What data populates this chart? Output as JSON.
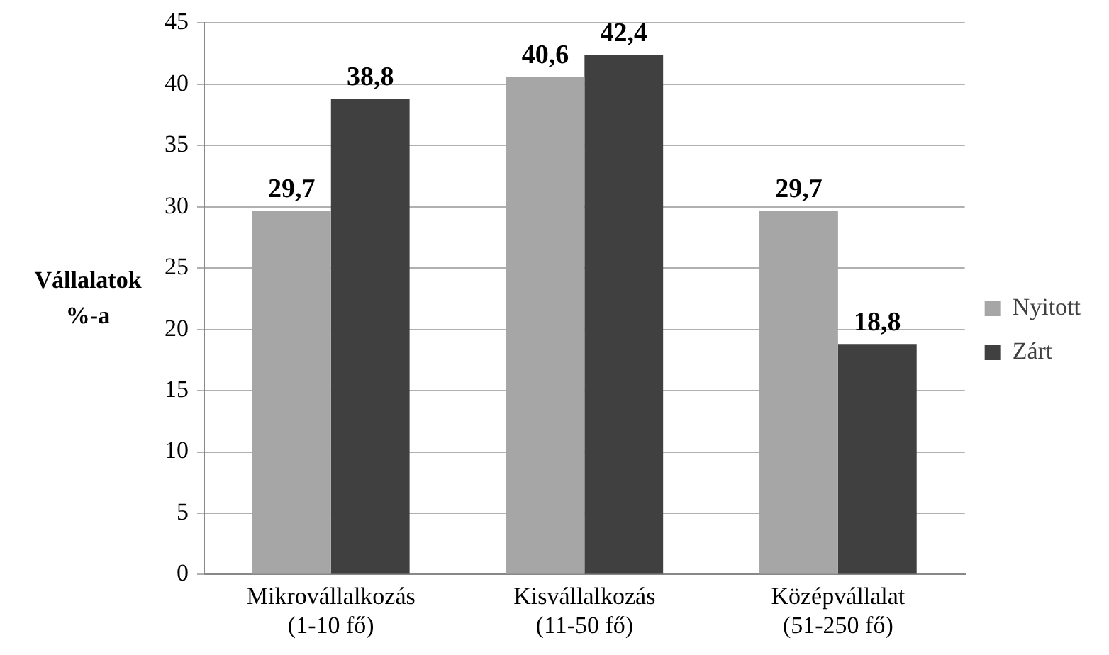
{
  "chart_data": {
    "type": "bar",
    "ylabel": "Vállalatok %-a",
    "categories": [
      "Mikrovállalkozás (1-10 fő)",
      "Kisvállalkozás (11-50 fő)",
      "Középvállalat (51-250 fő)"
    ],
    "series": [
      {
        "name": "Nyitott",
        "color": "#a6a6a6",
        "values": [
          29.7,
          40.6,
          29.7
        ],
        "value_labels": [
          "29,7",
          "40,6",
          "29,7"
        ]
      },
      {
        "name": "Zárt",
        "color": "#404040",
        "values": [
          38.8,
          42.4,
          18.8
        ],
        "value_labels": [
          "38,8",
          "42,4",
          "18,8"
        ]
      }
    ],
    "ylim": [
      0,
      45
    ],
    "yticks": [
      0,
      5,
      10,
      15,
      20,
      25,
      30,
      35,
      40,
      45
    ],
    "grid": "y",
    "legend": "right"
  }
}
